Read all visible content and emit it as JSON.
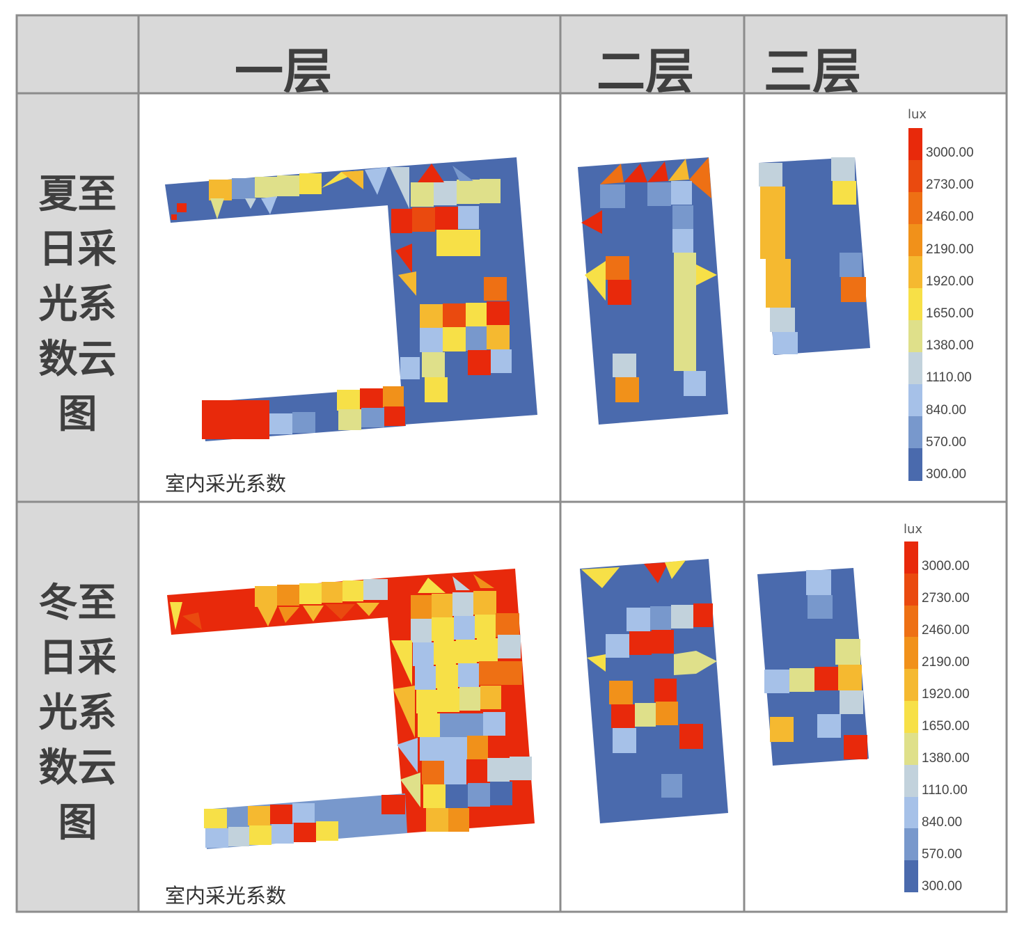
{
  "headers": {
    "col1": "一层",
    "col2": "二层",
    "col3": "三层"
  },
  "rows": [
    {
      "label": "夏至\n日采\n光系\n数云\n图",
      "caption": "室内采光系数"
    },
    {
      "label": "冬至\n日采\n光系\n数云\n图",
      "caption": "室内采光系数"
    }
  ],
  "legend": {
    "unit": "lux",
    "ticks": [
      "3000.00",
      "2730.00",
      "2460.00",
      "2190.00",
      "1920.00",
      "1650.00",
      "1380.00",
      "1110.00",
      "840.00",
      "570.00",
      "300.00"
    ],
    "colors": [
      "#e8290b",
      "#ea4a0f",
      "#ee7014",
      "#f1911a",
      "#f5b930",
      "#f7e047",
      "#dfe08a",
      "#c2d2dc",
      "#a6c1e8",
      "#7898cc",
      "#4a6aad"
    ]
  },
  "colors": {
    "border": "#8c8c8c",
    "header_bg": "#d9d9d9"
  }
}
